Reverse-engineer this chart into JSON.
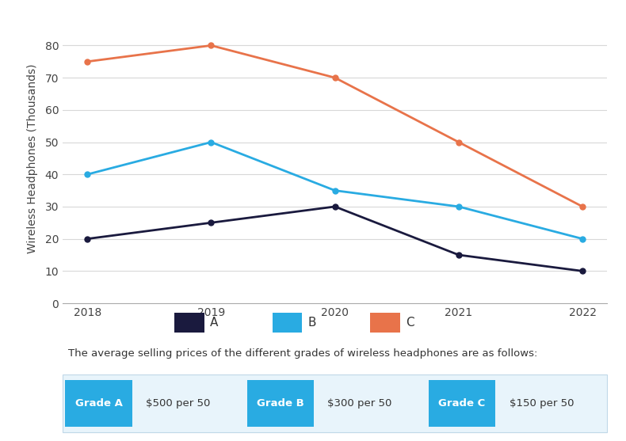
{
  "years": [
    2018,
    2019,
    2020,
    2021,
    2022
  ],
  "series_A": [
    20,
    25,
    30,
    15,
    10
  ],
  "series_B": [
    40,
    50,
    35,
    30,
    20
  ],
  "series_C": [
    75,
    80,
    70,
    50,
    30
  ],
  "color_A": "#1a1a3e",
  "color_B": "#29abe2",
  "color_C": "#e8734a",
  "ylabel": "Wireless Headphones (Thousands)",
  "ylim": [
    0,
    90
  ],
  "yticks": [
    0,
    10,
    20,
    30,
    40,
    50,
    60,
    70,
    80
  ],
  "legend_labels": [
    "A",
    "B",
    "C"
  ],
  "background_color": "#ffffff",
  "grid_color": "#d8d8d8",
  "annotation_text": "The average selling prices of the different grades of wireless headphones are as follows:",
  "grade_labels": [
    "Grade A",
    "Grade B",
    "Grade C"
  ],
  "grade_prices": [
    "$500 per 50",
    "$300 per 50",
    "$150 per 50"
  ],
  "grade_button_color": "#29abe2",
  "grade_button_text_color": "#ffffff",
  "grade_price_text_color": "#333333",
  "grade_row_bg": "#e8f4fb",
  "marker": "o",
  "marker_size": 5,
  "line_width": 2.0
}
